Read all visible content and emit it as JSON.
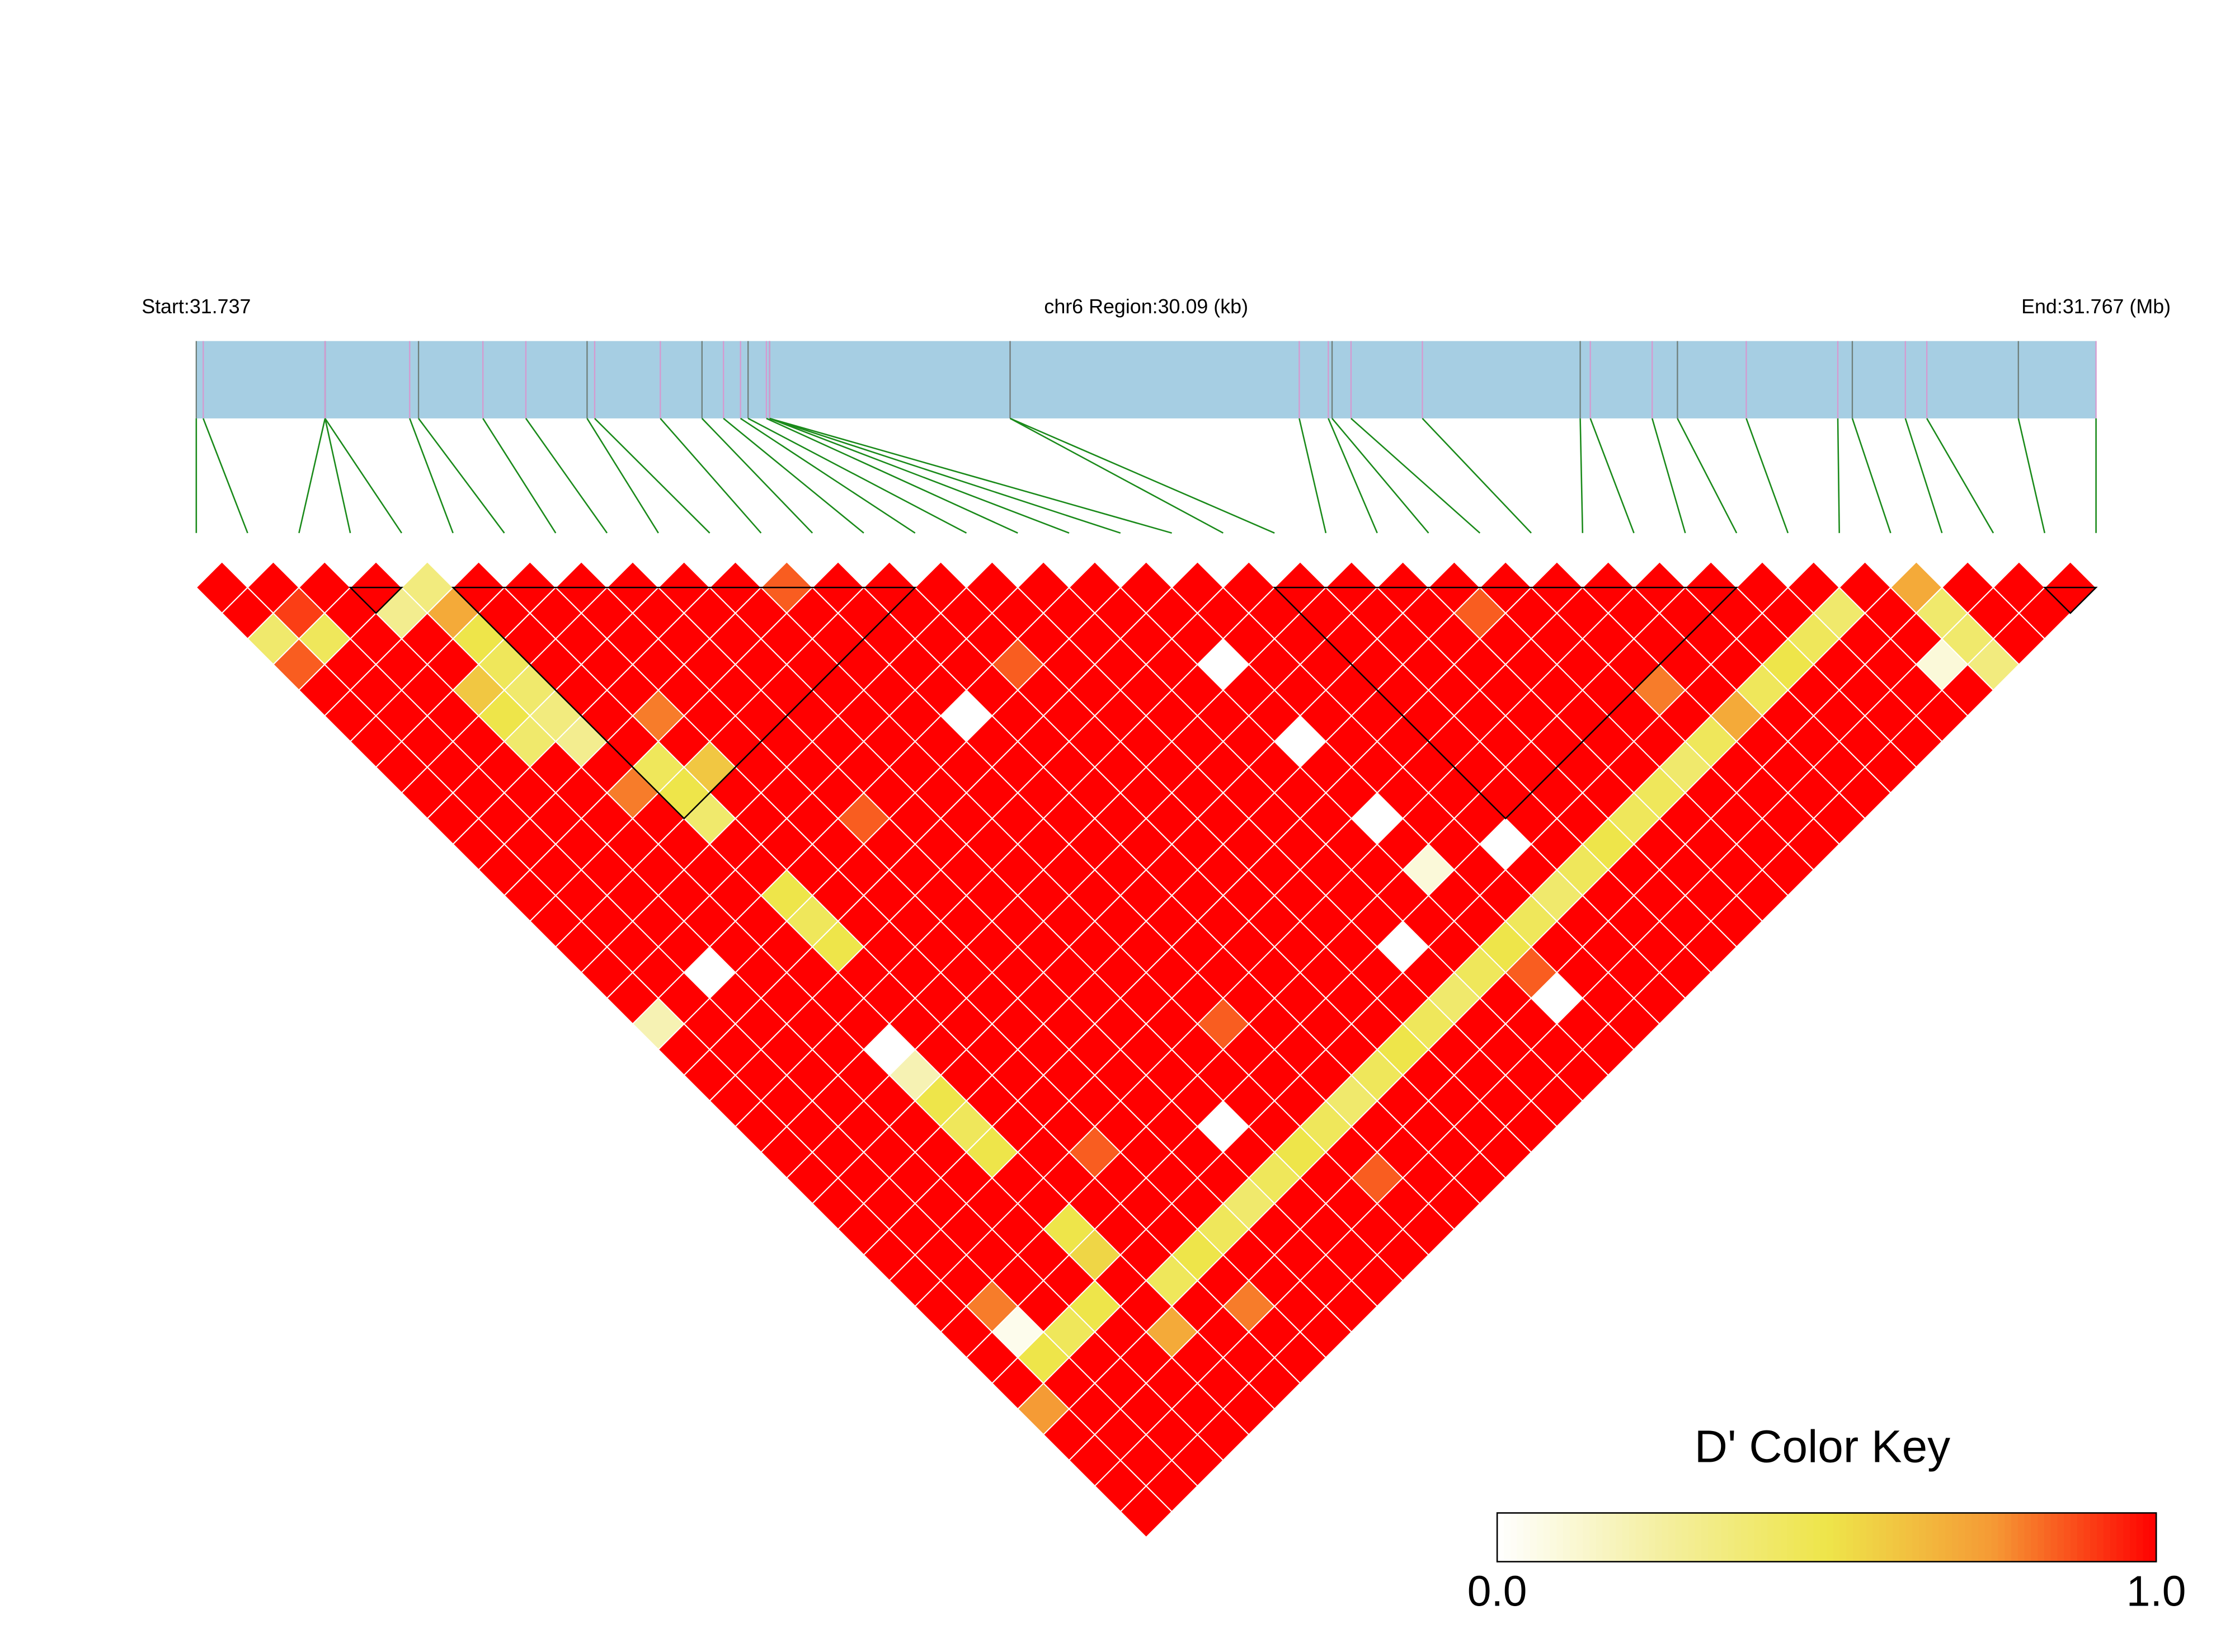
{
  "chart_data": {
    "type": "ld_heatmap",
    "labels": {
      "start": "Start:31.737",
      "region": "chr6 Region:30.09 (kb)",
      "end": "End:31.767 (Mb)"
    },
    "xlim": [
      0,
      30.09
    ],
    "snp_positions_kb": [
      0,
      0.11,
      2.04,
      2.04,
      2.04,
      3.38,
      3.52,
      4.54,
      5.22,
      6.19,
      6.31,
      7.35,
      8.01,
      8.35,
      8.62,
      8.74,
      9.03,
      9.08,
      9.08,
      9.08,
      12.89,
      12.89,
      17.47,
      17.93,
      17.99,
      18.29,
      19.42,
      21.92,
      22.08,
      23.06,
      23.46,
      24.55,
      26.0,
      26.23,
      27.07,
      27.41,
      28.86,
      30.09
    ],
    "bar_color": "#a6cee3",
    "dprime": [
      [
        1,
        1,
        0.4,
        0.85,
        1,
        1,
        1,
        1,
        1,
        1,
        1,
        1,
        1,
        1,
        1,
        1,
        1,
        0.2,
        1,
        1,
        1,
        1,
        1,
        1,
        1,
        1,
        1,
        1,
        1,
        1,
        1,
        1,
        0.75,
        1,
        1,
        1,
        1
      ],
      [
        1,
        0.9,
        0.45,
        1,
        1,
        1,
        1,
        1,
        1,
        1,
        1,
        1,
        1,
        1,
        1,
        1,
        1,
        1,
        1,
        1,
        1,
        1,
        1,
        1,
        1,
        1,
        1,
        1,
        0.8,
        0.05,
        0.5,
        1,
        1,
        1,
        1,
        1
      ],
      [
        1,
        1,
        1,
        1,
        1,
        1,
        1,
        1,
        1,
        1,
        1,
        1,
        1,
        1,
        1,
        0,
        1,
        1,
        1,
        1,
        1,
        1,
        1,
        1,
        1,
        1,
        1,
        1,
        1,
        0.45,
        1,
        1,
        1,
        1,
        1
      ],
      [
        1,
        0.3,
        1,
        1,
        0.6,
        0.5,
        0.4,
        1,
        1,
        1,
        1,
        1,
        1,
        1,
        1,
        1,
        1,
        1,
        1,
        1,
        1,
        1,
        1,
        1,
        1,
        1,
        1,
        1,
        0.5,
        1,
        1,
        1,
        1,
        1
      ],
      [
        0.35,
        0.7,
        0.5,
        0.45,
        0.4,
        0.35,
        0.3,
        1,
        0.8,
        1,
        1,
        1,
        1,
        1,
        1,
        1,
        1,
        1,
        0,
        0.2,
        0.5,
        0.45,
        0.5,
        1,
        1,
        0.5,
        0.55,
        1,
        1,
        0.7,
        1,
        1,
        1
      ],
      [
        1,
        1,
        1,
        1,
        1,
        1,
        1,
        0.45,
        0.5,
        0.4,
        1,
        1,
        0.5,
        0.45,
        0.5,
        1,
        1,
        1,
        1,
        1,
        1,
        1,
        1,
        1,
        1,
        1,
        1,
        0.45,
        1,
        1,
        1,
        1
      ],
      [
        1,
        1,
        1,
        1,
        1,
        0.8,
        1,
        0.6,
        1,
        1,
        1,
        1,
        1,
        1,
        1,
        1,
        1,
        1,
        1,
        1,
        1,
        1,
        0.85,
        1,
        1,
        1,
        0.5,
        1,
        0.8,
        1,
        1
      ],
      [
        1,
        1,
        1,
        1,
        1,
        1,
        1,
        1,
        1,
        1,
        1,
        1,
        1,
        1,
        1,
        1,
        1,
        1,
        1,
        1,
        1,
        1,
        1,
        1,
        1,
        0.45,
        1,
        1,
        1,
        1
      ],
      [
        1,
        1,
        1,
        1,
        1,
        1,
        1,
        1,
        1,
        0.85,
        1,
        1,
        1,
        1,
        1,
        1,
        1,
        1,
        1,
        1,
        1,
        1,
        1,
        1,
        0.4,
        1,
        1,
        1,
        1
      ],
      [
        1,
        1,
        1,
        1,
        1,
        1,
        1,
        1,
        1,
        1,
        1,
        1,
        1,
        1,
        1,
        1,
        1,
        1,
        1,
        1,
        1,
        0,
        1,
        0.45,
        1,
        1,
        1,
        1
      ],
      [
        1,
        1,
        1,
        1,
        1,
        1,
        1,
        1,
        1,
        1,
        1,
        1,
        1,
        1,
        1,
        1,
        1,
        1,
        1,
        1,
        1,
        1,
        0.5,
        1,
        1,
        1,
        1
      ],
      [
        0.85,
        1,
        1,
        1,
        1,
        1,
        1,
        1,
        1,
        1,
        1,
        1,
        1,
        1,
        1,
        1,
        1,
        0.85,
        1,
        1,
        1,
        0.45,
        1,
        0.85,
        1,
        1
      ],
      [
        1,
        1,
        1,
        1,
        1,
        0,
        1,
        1,
        1,
        1,
        1,
        1,
        1,
        1,
        1,
        1,
        1,
        1,
        1,
        1,
        0.4,
        1,
        1,
        1,
        1
      ],
      [
        1,
        1,
        1,
        1,
        1,
        1,
        1,
        1,
        1,
        1,
        1,
        1,
        1,
        1,
        1,
        1,
        1,
        1,
        1,
        0.45,
        1,
        1,
        1,
        1
      ],
      [
        1,
        1,
        1,
        0.85,
        1,
        1,
        1,
        1,
        1,
        1,
        1,
        1,
        1,
        1,
        1,
        1,
        1,
        1,
        0.5,
        1,
        1,
        1,
        1
      ],
      [
        1,
        1,
        1,
        1,
        1,
        1,
        1,
        1,
        1,
        1,
        1,
        1,
        1,
        1,
        1,
        1,
        1,
        0.45,
        1,
        1,
        1,
        1
      ],
      [
        1,
        1,
        1,
        1,
        1,
        1,
        1,
        1,
        1,
        1,
        1,
        1,
        1,
        1,
        0,
        1,
        0.4,
        1,
        1,
        1,
        1
      ],
      [
        1,
        1,
        1,
        1,
        1,
        1,
        1,
        1,
        1,
        1,
        1,
        1,
        1,
        1,
        1,
        0.45,
        1,
        1,
        1,
        1
      ],
      [
        1,
        1,
        1,
        0,
        1,
        1,
        0,
        1,
        1,
        0,
        1,
        0.1,
        1,
        1,
        0.5,
        0.85,
        0,
        1,
        1
      ],
      [
        1,
        1,
        1,
        1,
        1,
        1,
        1,
        1,
        1,
        1,
        1,
        1,
        1,
        0.45,
        1,
        1,
        1,
        1
      ],
      [
        1,
        1,
        1,
        1,
        1,
        1,
        1,
        1,
        1,
        1,
        0,
        1,
        0.4,
        1,
        1,
        1,
        1
      ],
      [
        1,
        1,
        1,
        1,
        1,
        1,
        1,
        1,
        1,
        1,
        1,
        0.45,
        1,
        1,
        1,
        1
      ],
      [
        1,
        1,
        1,
        1,
        1,
        1,
        1,
        1,
        1,
        1,
        0.5,
        1,
        1,
        1,
        1
      ],
      [
        1,
        1,
        1,
        1,
        1,
        1,
        1,
        1,
        1,
        0.45,
        1,
        1,
        1,
        1
      ],
      [
        1,
        0.85,
        1,
        1,
        1,
        1,
        1,
        1,
        0.45,
        1,
        1,
        1,
        1
      ],
      [
        1,
        1,
        1,
        1,
        1,
        1,
        1,
        0.4,
        1,
        1,
        1,
        1
      ],
      [
        1,
        1,
        1,
        1,
        0.8,
        1,
        0.45,
        1,
        1,
        1,
        1
      ],
      [
        1,
        1,
        1,
        1,
        1,
        0.7,
        1,
        1,
        1,
        1
      ],
      [
        1,
        1,
        1,
        1,
        0.45,
        1,
        1,
        1,
        1
      ],
      [
        1,
        1,
        1,
        0.5,
        1,
        1,
        1,
        1
      ],
      [
        1,
        1,
        0.45,
        1,
        1,
        1,
        1
      ],
      [
        1,
        0.4,
        1,
        1,
        1,
        1
      ],
      [
        1,
        1,
        1,
        0.1,
        1
      ],
      [
        0.7,
        0.4,
        0.4,
        0.35
      ],
      [
        1,
        1,
        1
      ],
      [
        1,
        1
      ],
      [
        1
      ]
    ],
    "blocks": [
      [
        3,
        4
      ],
      [
        5,
        14
      ],
      [
        21,
        30
      ],
      [
        36,
        37
      ]
    ],
    "colorbar": {
      "title": "D' Color Key",
      "lim": [
        0,
        1
      ],
      "ticks": [
        {
          "value": 0,
          "label": "0.0"
        },
        {
          "value": 1,
          "label": "1.0"
        }
      ],
      "colors": [
        "#ffffff",
        "#f4efa0",
        "#eee54a",
        "#f59b35",
        "#ff0000"
      ]
    }
  }
}
